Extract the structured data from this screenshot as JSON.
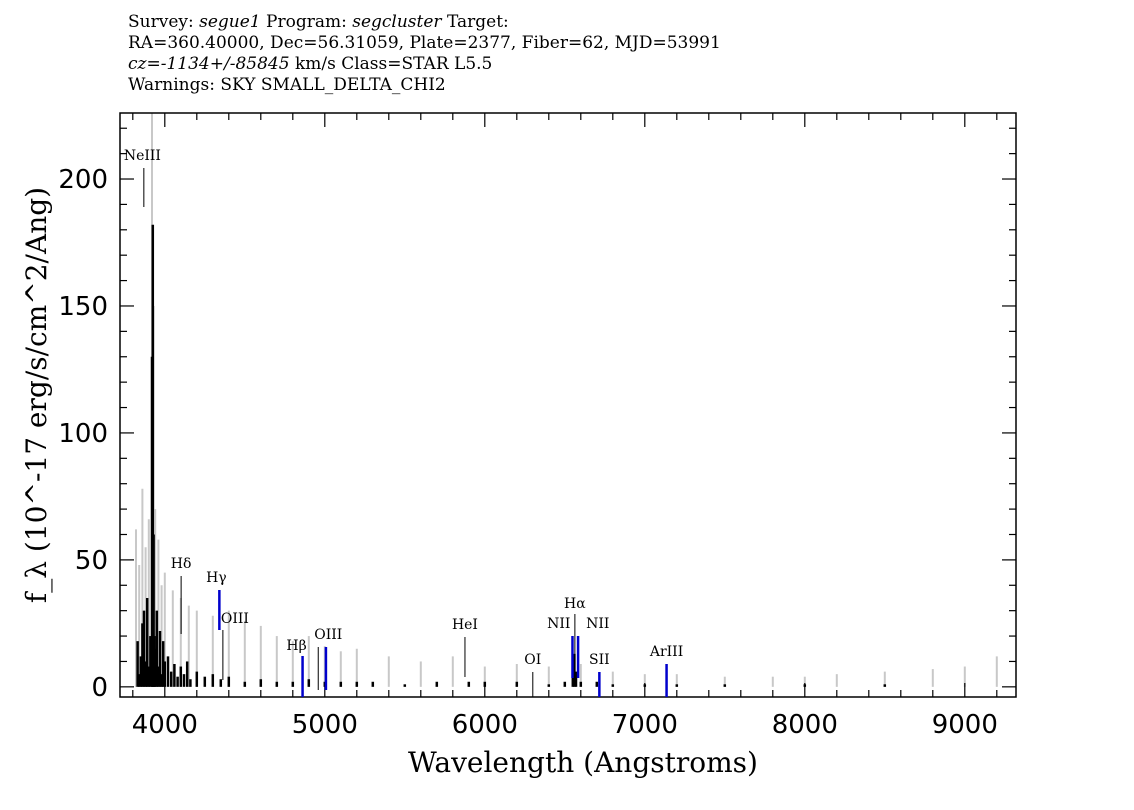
{
  "header": {
    "survey_label": "Survey:",
    "survey": "segue1",
    "program_label": "Program:",
    "program": "segcluster",
    "target_label": "Target:",
    "line2": "RA=360.40000, Dec=56.31059, Plate=2377, Fiber=62, MJD=53991",
    "cz_label": "cz=",
    "cz": "-1134+/-85845",
    "cz_rest": " km/s Class=STAR L5.5",
    "warnings": "Warnings: SKY SMALL_DELTA_CHI2"
  },
  "chart_data": {
    "type": "line",
    "xlabel": "Wavelength (Angstroms)",
    "ylabel": "f_λ (10^-17 erg/s/cm^2/Ang)",
    "xlim": [
      3720,
      9320
    ],
    "ylim": [
      -4,
      226
    ],
    "x_ticks": [
      4000,
      5000,
      6000,
      7000,
      8000,
      9000
    ],
    "y_ticks": [
      0,
      50,
      100,
      150,
      200
    ],
    "colors": {
      "flux": "#000000",
      "error": "#c8c8c8",
      "balmer": "#0000cc",
      "other": "#000000"
    },
    "series": [
      {
        "name": "flux",
        "x": [
          3830,
          3840,
          3850,
          3860,
          3870,
          3880,
          3890,
          3900,
          3910,
          3920,
          3925,
          3930,
          3935,
          3940,
          3950,
          3960,
          3970,
          3980,
          3990,
          4000,
          4020,
          4040,
          4060,
          4080,
          4100,
          4120,
          4140,
          4160,
          4200,
          4250,
          4300,
          4350,
          4400,
          4500,
          4600,
          4700,
          4800,
          4900,
          5000,
          5100,
          5200,
          5300,
          5500,
          5700,
          5900,
          6000,
          6200,
          6400,
          6500,
          6550,
          6560,
          6570,
          6600,
          6700,
          6800,
          7000,
          7200,
          7500,
          8000,
          8500,
          9000,
          9220
        ],
        "y": [
          18,
          5,
          12,
          25,
          30,
          10,
          35,
          8,
          20,
          130,
          182,
          60,
          20,
          15,
          30,
          8,
          22,
          5,
          18,
          10,
          12,
          6,
          9,
          4,
          8,
          5,
          10,
          3,
          6,
          4,
          5,
          3,
          4,
          2,
          3,
          2,
          2,
          3,
          2,
          2,
          2,
          2,
          1,
          2,
          2,
          2,
          2,
          1,
          2,
          8,
          13,
          6,
          2,
          2,
          1,
          1,
          1,
          1,
          1,
          1,
          0,
          0
        ]
      },
      {
        "name": "error",
        "x": [
          3820,
          3840,
          3860,
          3880,
          3900,
          3920,
          3930,
          3940,
          3960,
          3980,
          4000,
          4050,
          4100,
          4150,
          4200,
          4300,
          4400,
          4500,
          4600,
          4700,
          4800,
          4900,
          5000,
          5100,
          5200,
          5400,
          5600,
          5800,
          6000,
          6200,
          6400,
          6600,
          6800,
          7000,
          7200,
          7500,
          7800,
          8000,
          8200,
          8500,
          8800,
          9000,
          9200
        ],
        "y": [
          62,
          48,
          78,
          55,
          66,
          226,
          150,
          70,
          58,
          40,
          45,
          38,
          35,
          32,
          30,
          28,
          30,
          26,
          24,
          20,
          18,
          20,
          16,
          14,
          15,
          12,
          10,
          12,
          8,
          9,
          8,
          9,
          6,
          5,
          5,
          4,
          4,
          4,
          5,
          6,
          7,
          8,
          12
        ]
      }
    ],
    "lines": [
      {
        "label": "NeIII",
        "x": 3869,
        "color": "other"
      },
      {
        "label": "Hδ",
        "x": 4102,
        "color": "other"
      },
      {
        "label": "Hγ",
        "x": 4341,
        "color": "balmer"
      },
      {
        "label": "OIII",
        "x": 4363,
        "color": "other"
      },
      {
        "label": "Hβ",
        "x": 4861,
        "color": "balmer"
      },
      {
        "label": "OIII",
        "x": 4959,
        "color": "other"
      },
      {
        "label": "OIII",
        "x": 5007,
        "color": "balmer"
      },
      {
        "label": "HeI",
        "x": 5876,
        "color": "other"
      },
      {
        "label": "OI",
        "x": 6300,
        "color": "other"
      },
      {
        "label": "NII",
        "x": 6548,
        "color": "balmer"
      },
      {
        "label": "Hα",
        "x": 6563,
        "color": "other"
      },
      {
        "label": "NII",
        "x": 6583,
        "color": "balmer"
      },
      {
        "label": "SII",
        "x": 6716,
        "color": "balmer"
      },
      {
        "label": "ArIII",
        "x": 7136,
        "color": "balmer"
      }
    ]
  }
}
